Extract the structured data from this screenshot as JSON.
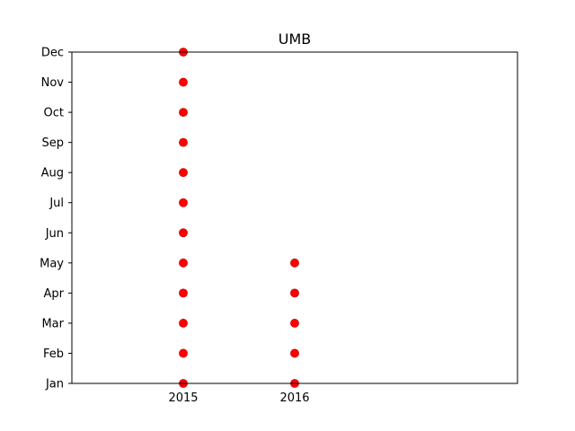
{
  "chart_data": {
    "type": "scatter",
    "title": "UMB",
    "xlabel": "",
    "ylabel": "",
    "x_ticks": [
      "2015",
      "2016"
    ],
    "y_ticks": [
      "Jan",
      "Feb",
      "Mar",
      "Apr",
      "May",
      "Jun",
      "Jul",
      "Aug",
      "Sep",
      "Oct",
      "Nov",
      "Dec"
    ],
    "xlim": [
      2014,
      2018
    ],
    "ylim": [
      1,
      12
    ],
    "grid": false,
    "marker_color": "#ff0000",
    "points": [
      {
        "x": 2015,
        "y": "Jan"
      },
      {
        "x": 2015,
        "y": "Feb"
      },
      {
        "x": 2015,
        "y": "Mar"
      },
      {
        "x": 2015,
        "y": "Apr"
      },
      {
        "x": 2015,
        "y": "May"
      },
      {
        "x": 2015,
        "y": "Jun"
      },
      {
        "x": 2015,
        "y": "Jul"
      },
      {
        "x": 2015,
        "y": "Aug"
      },
      {
        "x": 2015,
        "y": "Sep"
      },
      {
        "x": 2015,
        "y": "Oct"
      },
      {
        "x": 2015,
        "y": "Nov"
      },
      {
        "x": 2015,
        "y": "Dec"
      },
      {
        "x": 2016,
        "y": "Jan"
      },
      {
        "x": 2016,
        "y": "Feb"
      },
      {
        "x": 2016,
        "y": "Mar"
      },
      {
        "x": 2016,
        "y": "Apr"
      },
      {
        "x": 2016,
        "y": "May"
      }
    ]
  }
}
